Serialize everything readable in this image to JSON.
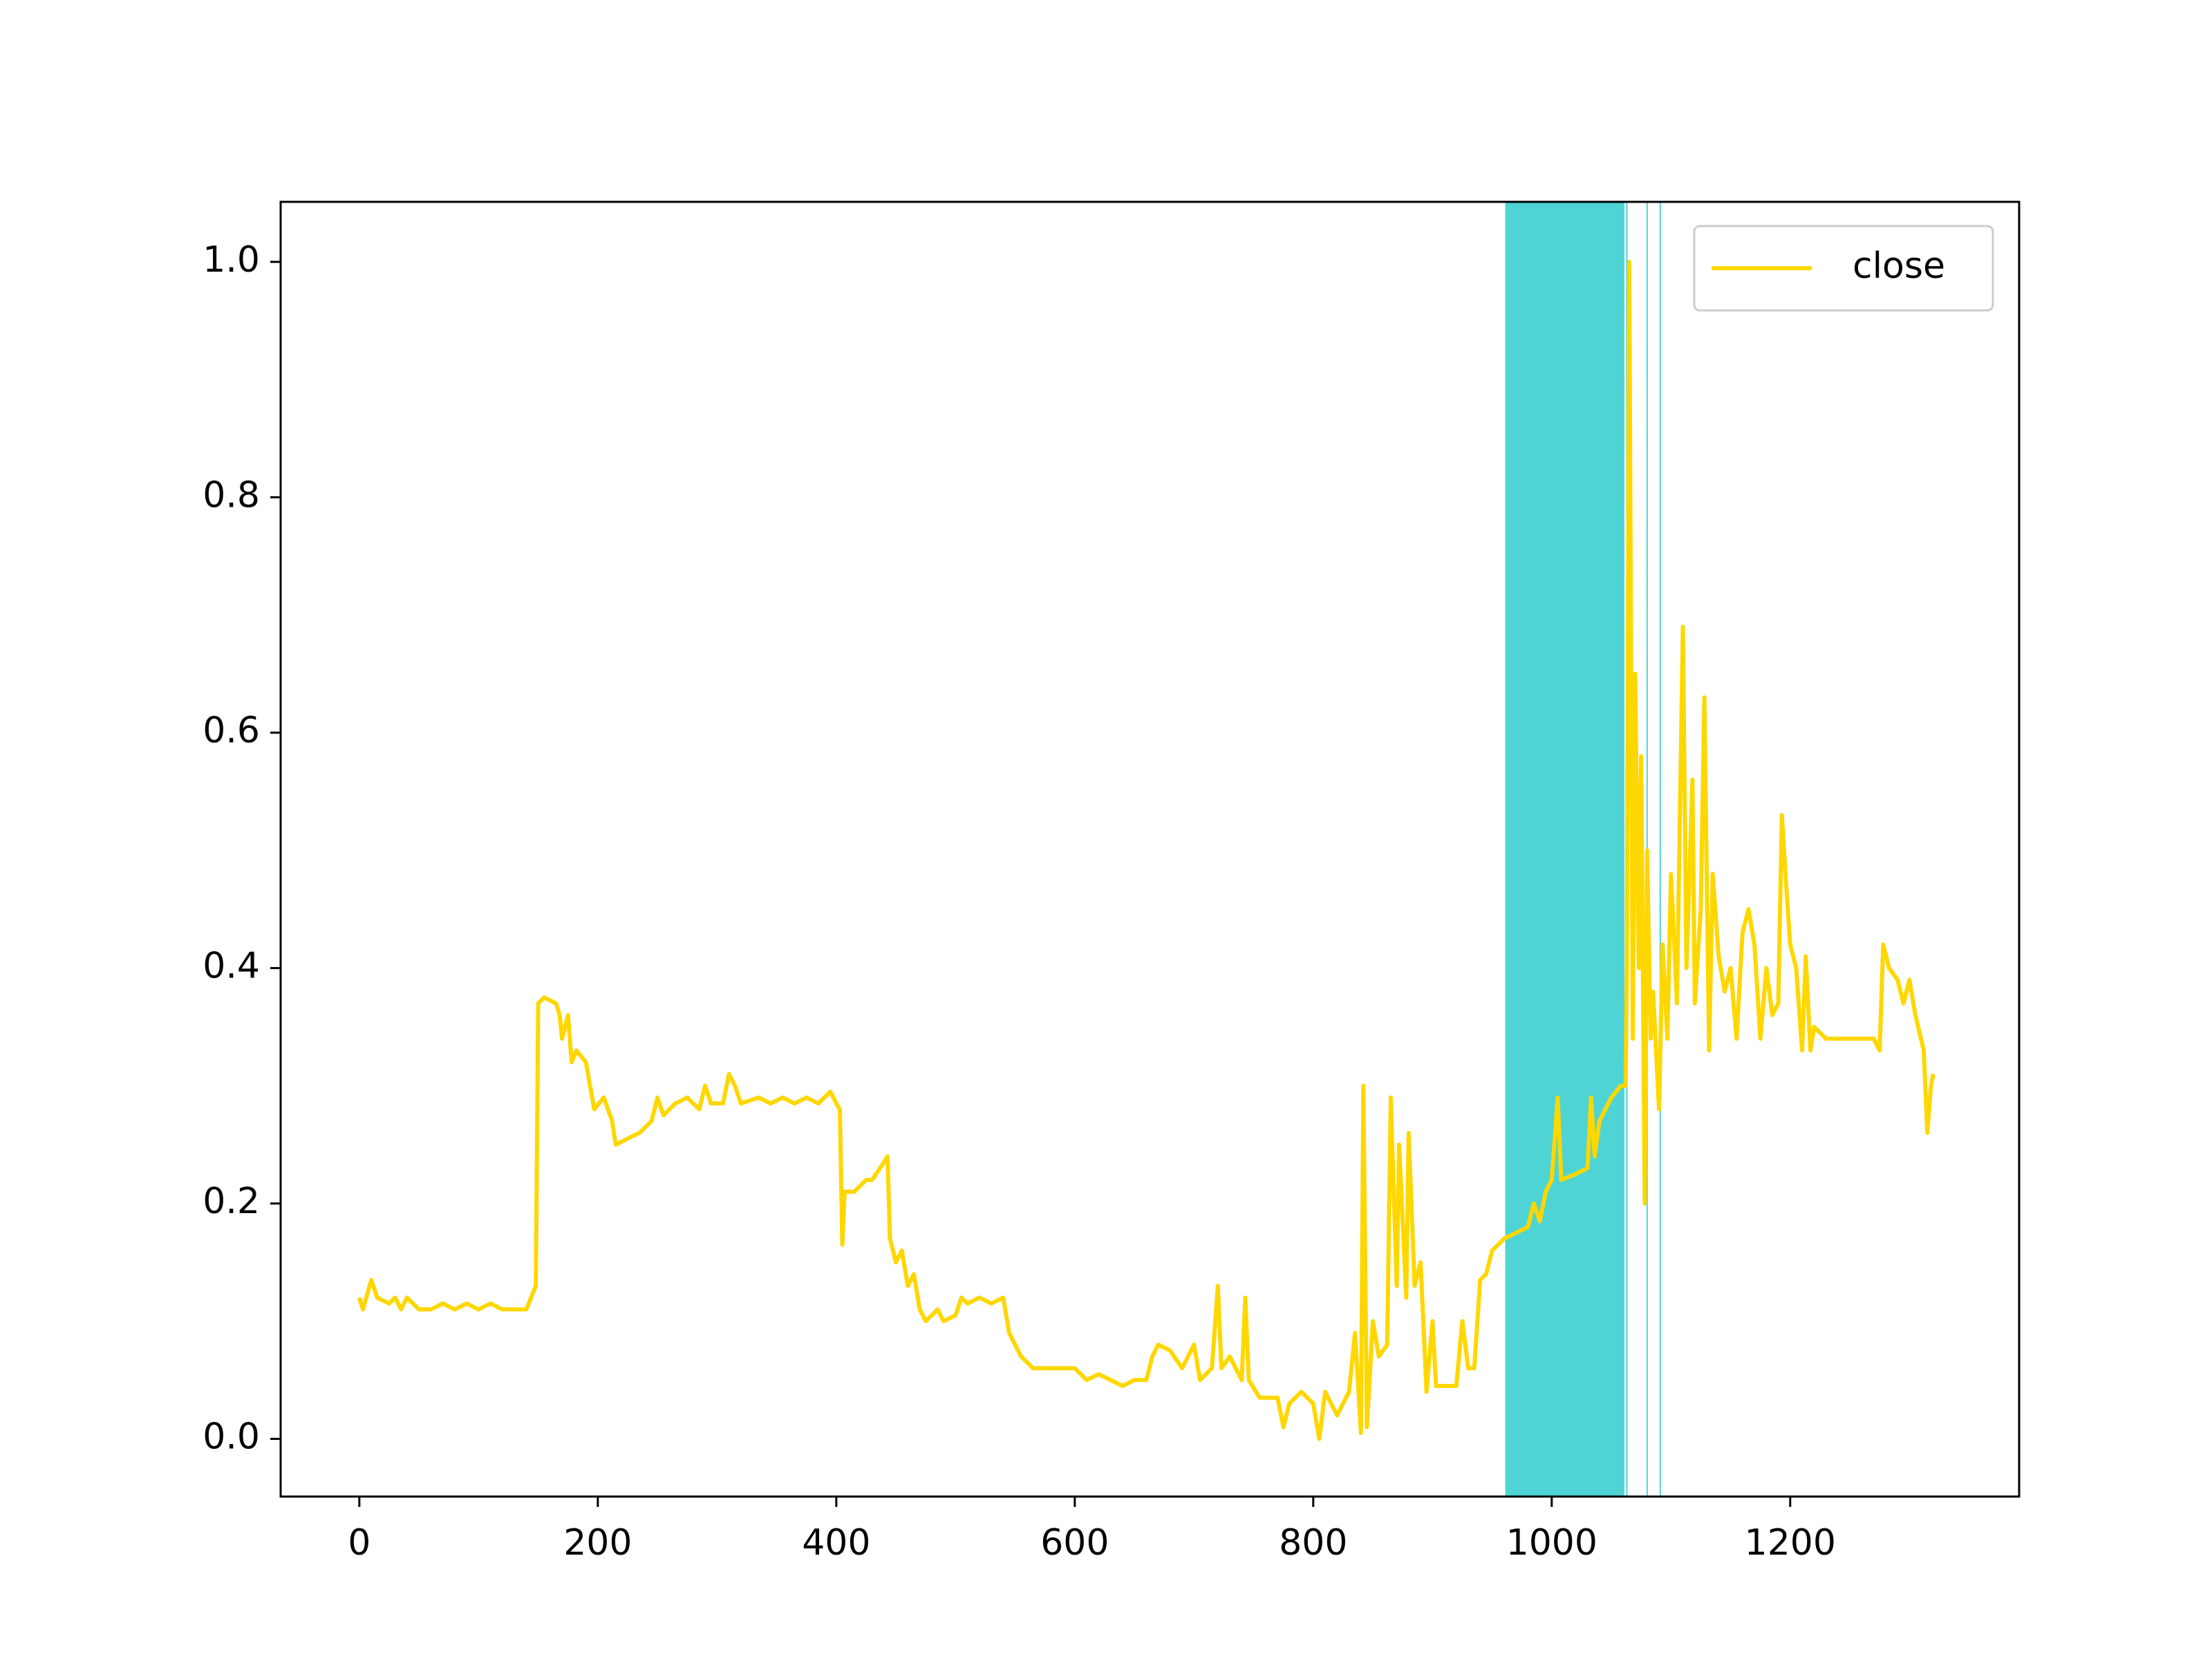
{
  "chart_data": {
    "type": "line",
    "x": [
      0,
      3,
      10,
      15,
      25,
      30,
      35,
      40,
      50,
      60,
      70,
      80,
      90,
      100,
      110,
      120,
      140,
      146,
      148,
      150,
      155,
      165,
      168,
      170,
      175,
      178,
      182,
      190,
      197,
      205,
      212,
      215,
      225,
      235,
      245,
      250,
      255,
      265,
      275,
      285,
      290,
      295,
      305,
      310,
      315,
      320,
      335,
      345,
      355,
      365,
      375,
      385,
      395,
      400,
      403,
      405,
      407,
      415,
      420,
      425,
      430,
      440,
      443,
      445,
      450,
      455,
      460,
      465,
      470,
      475,
      485,
      490,
      500,
      505,
      510,
      520,
      530,
      540,
      545,
      555,
      565,
      580,
      600,
      610,
      620,
      630,
      640,
      650,
      660,
      665,
      670,
      680,
      690,
      700,
      705,
      715,
      720,
      723,
      730,
      740,
      743,
      746,
      755,
      770,
      775,
      780,
      790,
      800,
      805,
      810,
      820,
      830,
      835,
      840,
      842,
      845,
      850,
      855,
      862,
      865,
      870,
      872,
      878,
      880,
      885,
      890,
      895,
      900,
      903,
      920,
      925,
      930,
      935,
      940,
      945,
      950,
      960,
      970,
      980,
      985,
      990,
      995,
      1000,
      1005,
      1008,
      1020,
      1030,
      1033,
      1036,
      1040,
      1045,
      1050,
      1058,
      1062,
      1063,
      1065,
      1068,
      1070,
      1073,
      1075,
      1078,
      1080,
      1083,
      1085,
      1090,
      1093,
      1097,
      1100,
      1105,
      1110,
      1113,
      1118,
      1120,
      1125,
      1128,
      1132,
      1135,
      1140,
      1145,
      1150,
      1155,
      1160,
      1165,
      1170,
      1175,
      1180,
      1185,
      1190,
      1193,
      1196,
      1200,
      1205,
      1210,
      1213,
      1217,
      1220,
      1230,
      1240,
      1250,
      1260,
      1270,
      1275,
      1278,
      1283,
      1290,
      1295,
      1300,
      1305,
      1312,
      1315,
      1318,
      1320
    ],
    "series": [
      {
        "name": "close",
        "color": "#ffd700",
        "values": [
          0.12,
          0.11,
          0.135,
          0.12,
          0.115,
          0.12,
          0.11,
          0.12,
          0.11,
          0.11,
          0.115,
          0.11,
          0.115,
          0.11,
          0.115,
          0.11,
          0.11,
          0.125,
          0.13,
          0.37,
          0.375,
          0.37,
          0.36,
          0.34,
          0.36,
          0.32,
          0.33,
          0.32,
          0.28,
          0.29,
          0.27,
          0.25,
          0.255,
          0.26,
          0.27,
          0.29,
          0.275,
          0.285,
          0.29,
          0.28,
          0.3,
          0.285,
          0.285,
          0.31,
          0.3,
          0.285,
          0.29,
          0.285,
          0.29,
          0.285,
          0.29,
          0.285,
          0.295,
          0.285,
          0.28,
          0.165,
          0.21,
          0.21,
          0.215,
          0.22,
          0.22,
          0.235,
          0.24,
          0.17,
          0.15,
          0.16,
          0.13,
          0.14,
          0.11,
          0.1,
          0.11,
          0.1,
          0.105,
          0.12,
          0.115,
          0.12,
          0.115,
          0.12,
          0.09,
          0.07,
          0.06,
          0.06,
          0.06,
          0.05,
          0.055,
          0.05,
          0.045,
          0.05,
          0.05,
          0.07,
          0.08,
          0.075,
          0.06,
          0.08,
          0.05,
          0.06,
          0.13,
          0.06,
          0.07,
          0.05,
          0.12,
          0.05,
          0.035,
          0.035,
          0.01,
          0.03,
          0.04,
          0.03,
          0.0,
          0.04,
          0.02,
          0.04,
          0.09,
          0.005,
          0.3,
          0.01,
          0.1,
          0.07,
          0.08,
          0.29,
          0.13,
          0.25,
          0.12,
          0.26,
          0.13,
          0.15,
          0.04,
          0.1,
          0.045,
          0.045,
          0.1,
          0.06,
          0.06,
          0.135,
          0.14,
          0.16,
          0.17,
          0.175,
          0.18,
          0.2,
          0.185,
          0.21,
          0.22,
          0.29,
          0.22,
          0.225,
          0.23,
          0.29,
          0.24,
          0.27,
          0.28,
          0.29,
          0.3,
          0.3,
          0.4,
          1.0,
          0.34,
          0.65,
          0.4,
          0.58,
          0.2,
          0.5,
          0.34,
          0.38,
          0.28,
          0.42,
          0.34,
          0.48,
          0.37,
          0.69,
          0.4,
          0.56,
          0.37,
          0.45,
          0.63,
          0.33,
          0.48,
          0.41,
          0.38,
          0.4,
          0.34,
          0.43,
          0.45,
          0.42,
          0.34,
          0.4,
          0.36,
          0.37,
          0.53,
          0.48,
          0.42,
          0.4,
          0.33,
          0.41,
          0.33,
          0.35,
          0.34,
          0.34,
          0.34,
          0.34,
          0.34,
          0.33,
          0.42,
          0.4,
          0.39,
          0.37,
          0.39,
          0.36,
          0.33,
          0.26,
          0.3,
          0.31
        ]
      }
    ],
    "spans": [
      [
        961,
        1061
      ]
    ],
    "span_color": "#4ed4d4",
    "vlines": [
      1063,
      1080,
      1091
    ],
    "xlim": [
      -66,
      1392
    ],
    "ylim": [
      -0.049,
      1.051
    ],
    "xticks": [
      0,
      200,
      400,
      600,
      800,
      1000,
      1200
    ],
    "yticks": [
      {
        "value": 0,
        "label": "0.0"
      },
      0.2,
      0.4,
      0.6,
      0.8,
      {
        "value": 1,
        "label": "1.0"
      }
    ],
    "legend": "upper right",
    "grid": false
  }
}
